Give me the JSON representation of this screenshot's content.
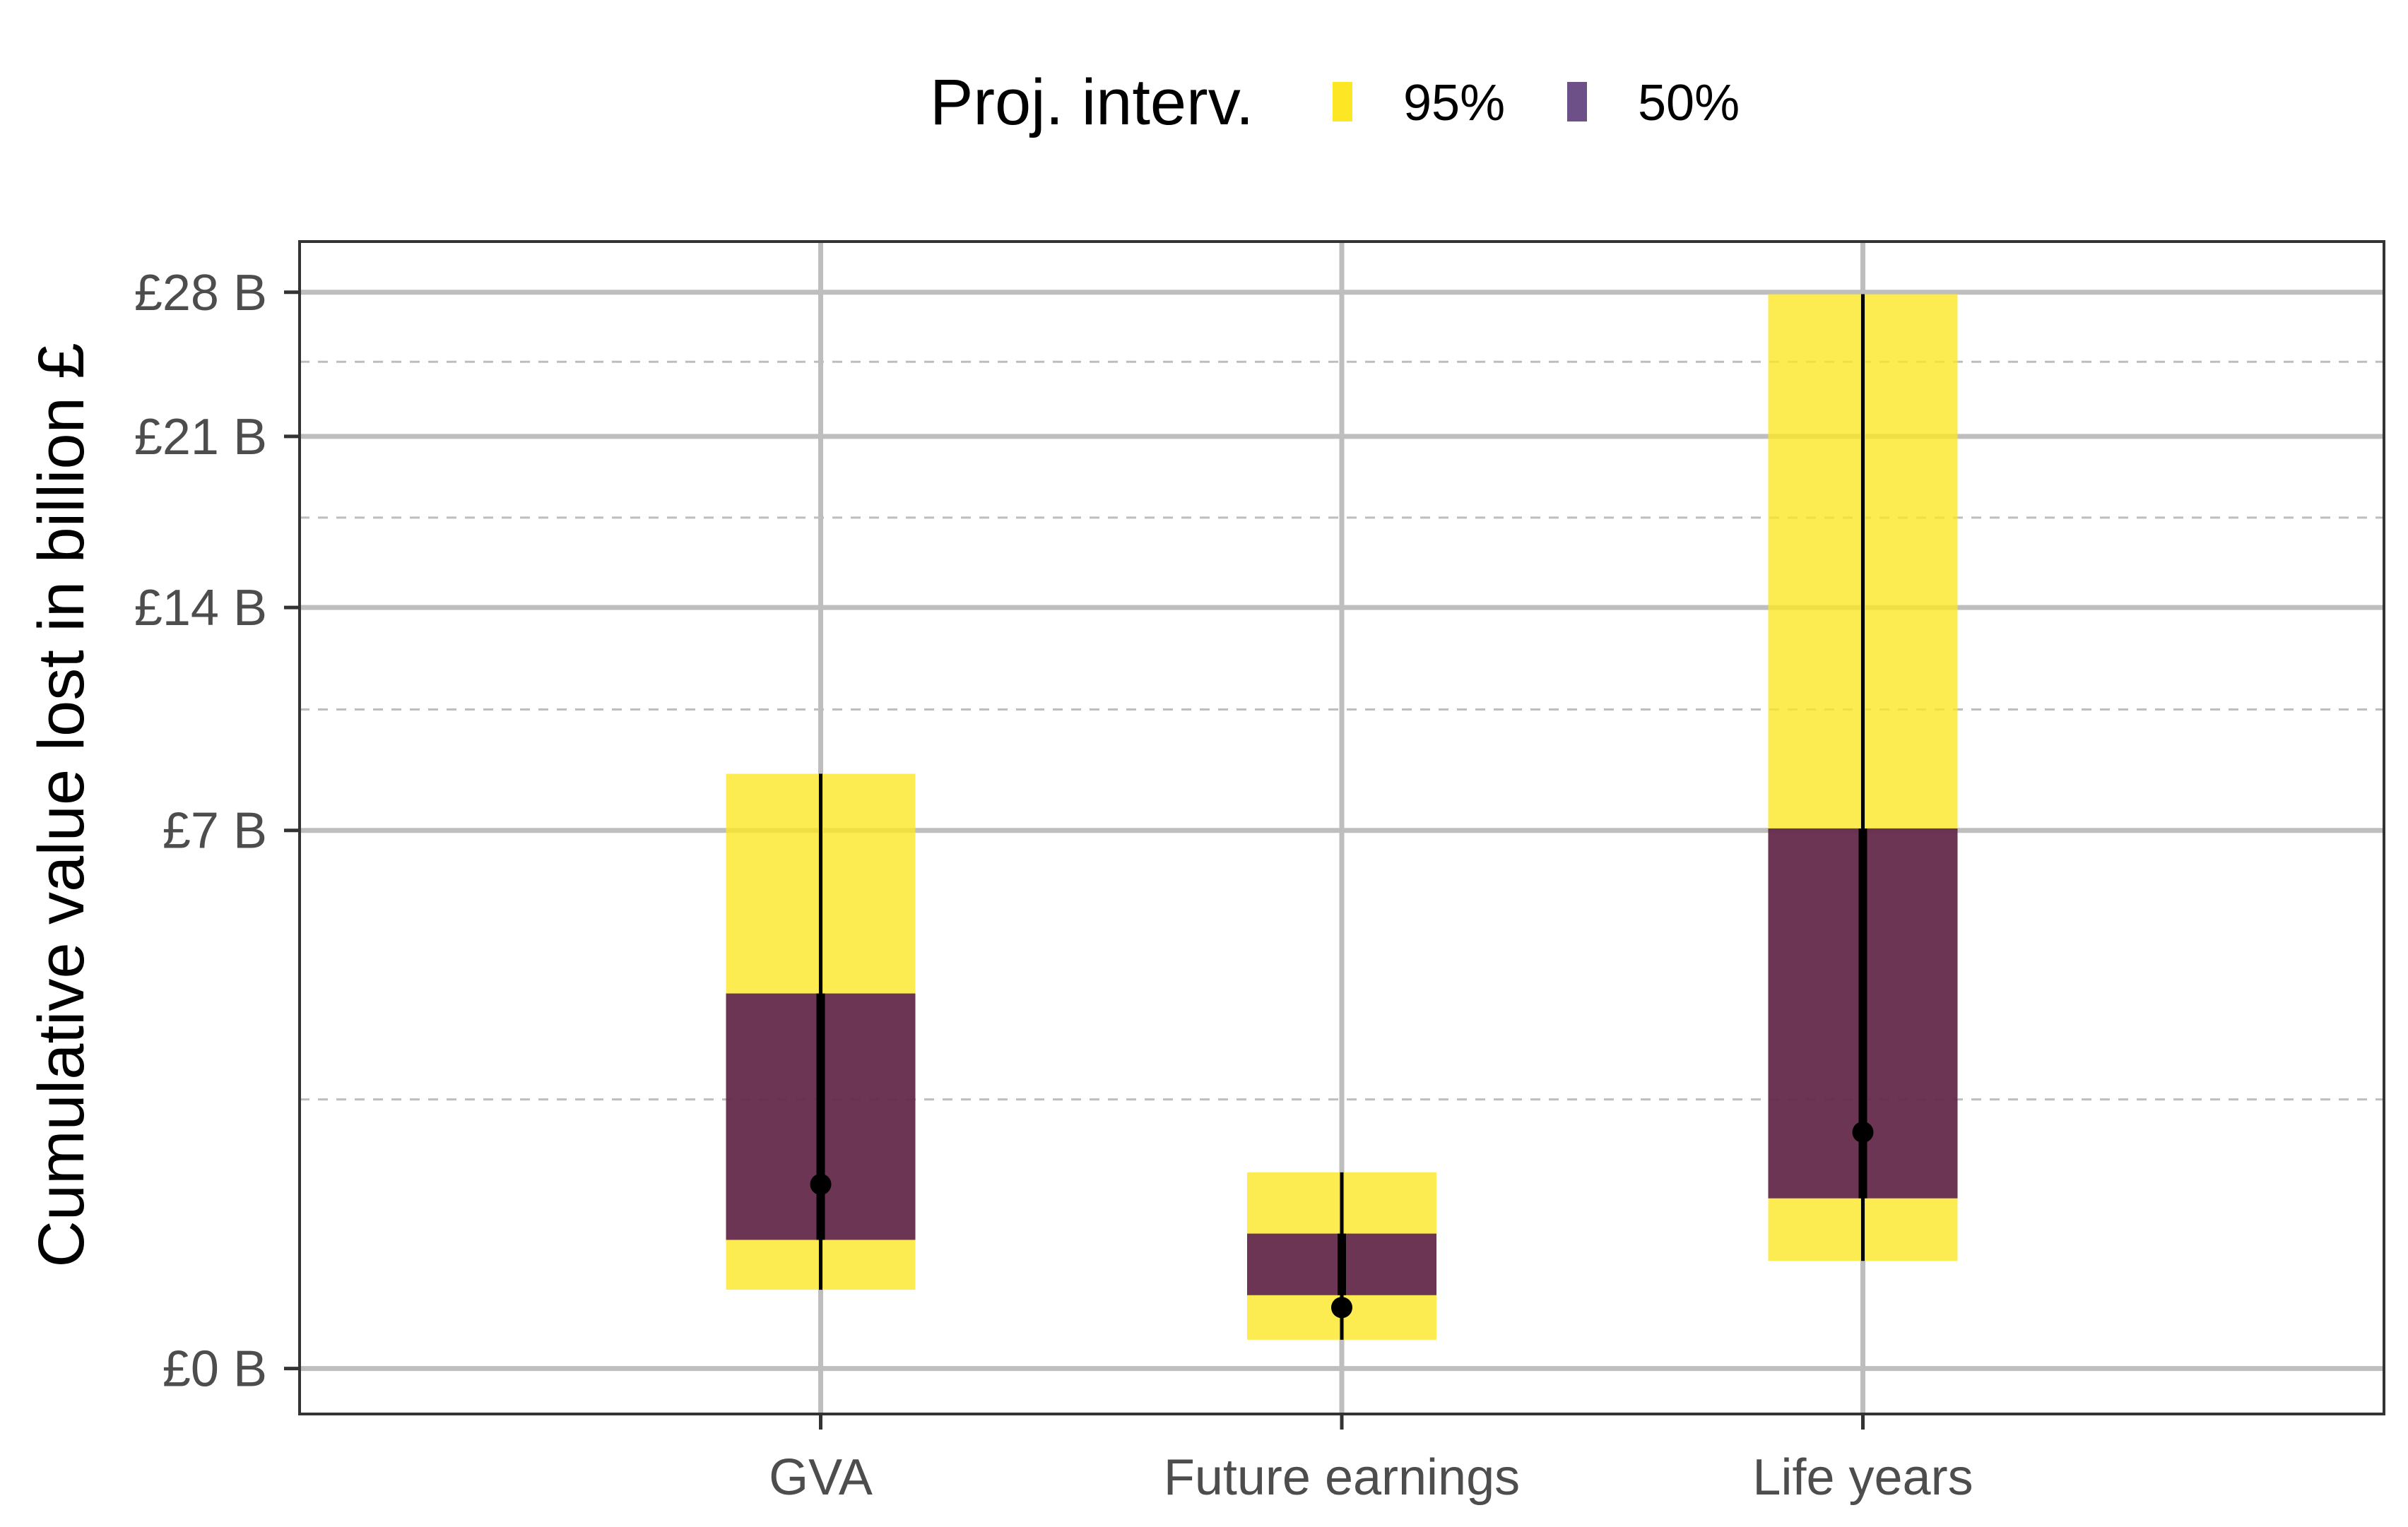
{
  "chart_data": {
    "type": "bar",
    "title": "",
    "xlabel": "",
    "ylabel": "Cumulative value lost in billion £",
    "y_scale": "sqrt",
    "ylim": [
      -0.05,
      30.7
    ],
    "y_ticks": [
      0,
      7,
      14,
      21,
      28
    ],
    "y_tick_labels": [
      "£0 B",
      "£7 B",
      "£14 B",
      "£21 B",
      "£28 B"
    ],
    "y_minor_ticks": [
      1.75,
      10.5,
      17.5,
      24.5
    ],
    "grid": true,
    "categories": [
      "GVA",
      "Future earnings",
      "Life years"
    ],
    "legend": {
      "title": "Proj. interv.",
      "position": "top",
      "entries": [
        {
          "label": "95%",
          "color": "#FDE725"
        },
        {
          "label": "50%",
          "color": "#440154"
        }
      ]
    },
    "series": [
      {
        "name": "95%",
        "low": [
          0.15,
          0.02,
          0.28
        ],
        "high": [
          8.55,
          0.93,
          27.9
        ]
      },
      {
        "name": "50%",
        "low": [
          0.4,
          0.13,
          0.7
        ],
        "high": [
          3.4,
          0.44,
          7.05
        ]
      }
    ],
    "median": [
      0.82,
      0.09,
      1.35
    ],
    "colors": {
      "interval_95": "#FDE725",
      "interval_50": "#440154",
      "line": "#000000",
      "grid": "#bebebe",
      "panel_border": "#333333"
    }
  }
}
